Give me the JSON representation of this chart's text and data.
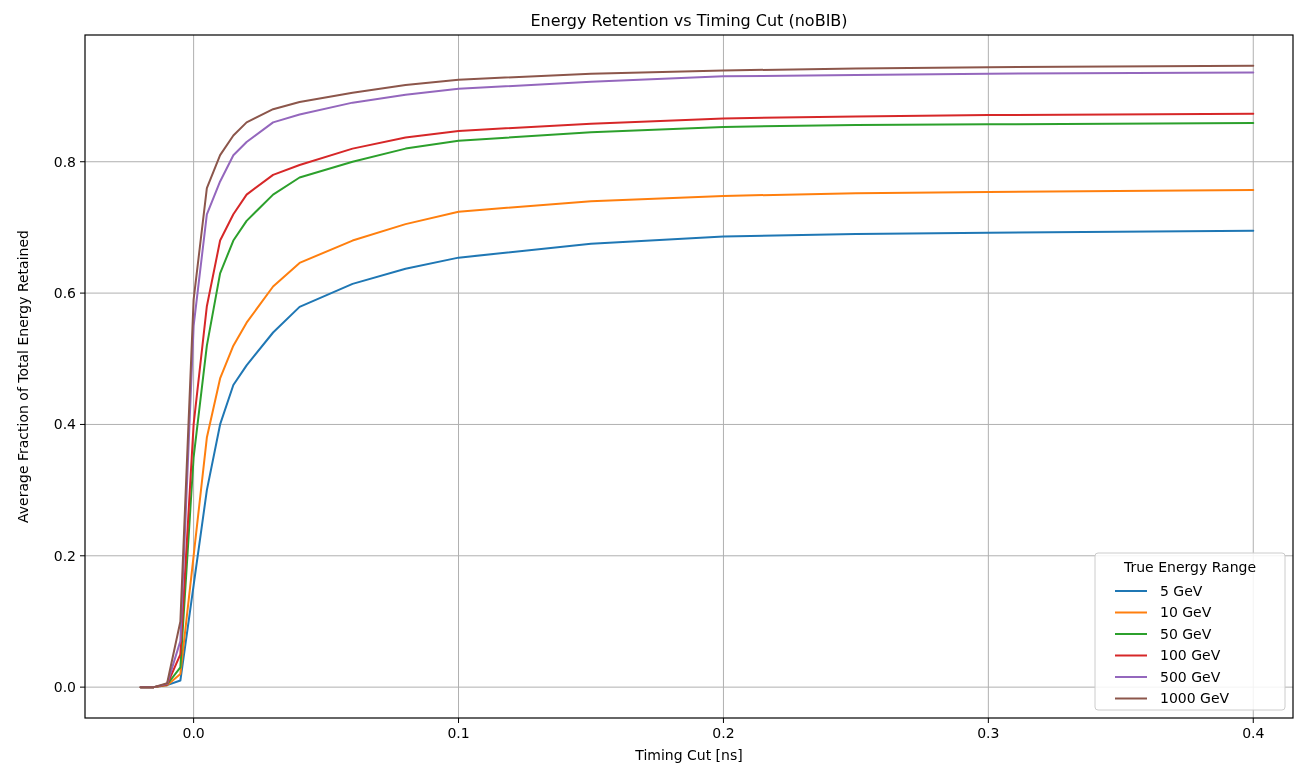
{
  "chart_data": {
    "type": "line",
    "title": "Energy Retention vs Timing Cut (noBIB)",
    "xlabel": "Timing Cut [ns]",
    "ylabel": "Average Fraction of Total Energy Retained",
    "legend_title": "True Energy Range",
    "legend": "bottom right",
    "grid": true,
    "line_style": "solid",
    "xlim": [
      -0.041,
      0.415
    ],
    "ylim": [
      -0.047,
      0.993
    ],
    "xticks": [
      {
        "value": 0,
        "label": "0.0"
      },
      0.1,
      0.2,
      0.3,
      0.4
    ],
    "yticks": [
      {
        "value": 0,
        "label": "0.0"
      },
      0.2,
      0.4,
      0.6,
      0.8
    ],
    "x": [
      -0.02,
      -0.015,
      -0.01,
      -0.005,
      0,
      0.005,
      0.01,
      0.015,
      0.02,
      0.03,
      0.04,
      0.06,
      0.08,
      0.1,
      0.15,
      0.2,
      0.25,
      0.3,
      0.4
    ],
    "series": [
      {
        "name": "5 GeV",
        "color": "#1f77b4",
        "values": [
          0,
          0,
          0.003,
          0.01,
          0.155,
          0.3,
          0.4,
          0.46,
          0.49,
          0.54,
          0.579,
          0.614,
          0.637,
          0.654,
          0.675,
          0.686,
          0.69,
          0.692,
          0.695
        ]
      },
      {
        "name": "10 GeV",
        "color": "#ff7f0e",
        "values": [
          0,
          0,
          0.003,
          0.02,
          0.2,
          0.38,
          0.47,
          0.52,
          0.555,
          0.61,
          0.646,
          0.68,
          0.705,
          0.724,
          0.74,
          0.748,
          0.752,
          0.754,
          0.757
        ]
      },
      {
        "name": "50 GeV",
        "color": "#2ca02c",
        "values": [
          0,
          0,
          0.004,
          0.03,
          0.35,
          0.52,
          0.63,
          0.68,
          0.71,
          0.75,
          0.776,
          0.8,
          0.82,
          0.832,
          0.845,
          0.853,
          0.856,
          0.857,
          0.859
        ]
      },
      {
        "name": "100 GeV",
        "color": "#d62728",
        "values": [
          0,
          0,
          0.004,
          0.05,
          0.4,
          0.58,
          0.68,
          0.72,
          0.75,
          0.78,
          0.795,
          0.82,
          0.837,
          0.847,
          0.858,
          0.866,
          0.869,
          0.871,
          0.873
        ]
      },
      {
        "name": "500 GeV",
        "color": "#9467bd",
        "values": [
          0,
          0,
          0.005,
          0.07,
          0.55,
          0.72,
          0.77,
          0.81,
          0.83,
          0.86,
          0.872,
          0.89,
          0.902,
          0.911,
          0.922,
          0.93,
          0.932,
          0.934,
          0.936
        ]
      },
      {
        "name": "1000 GeV",
        "color": "#8c564b",
        "values": [
          0,
          0,
          0.006,
          0.1,
          0.59,
          0.76,
          0.81,
          0.84,
          0.86,
          0.88,
          0.891,
          0.905,
          0.917,
          0.925,
          0.934,
          0.939,
          0.942,
          0.944,
          0.946
        ]
      }
    ]
  }
}
